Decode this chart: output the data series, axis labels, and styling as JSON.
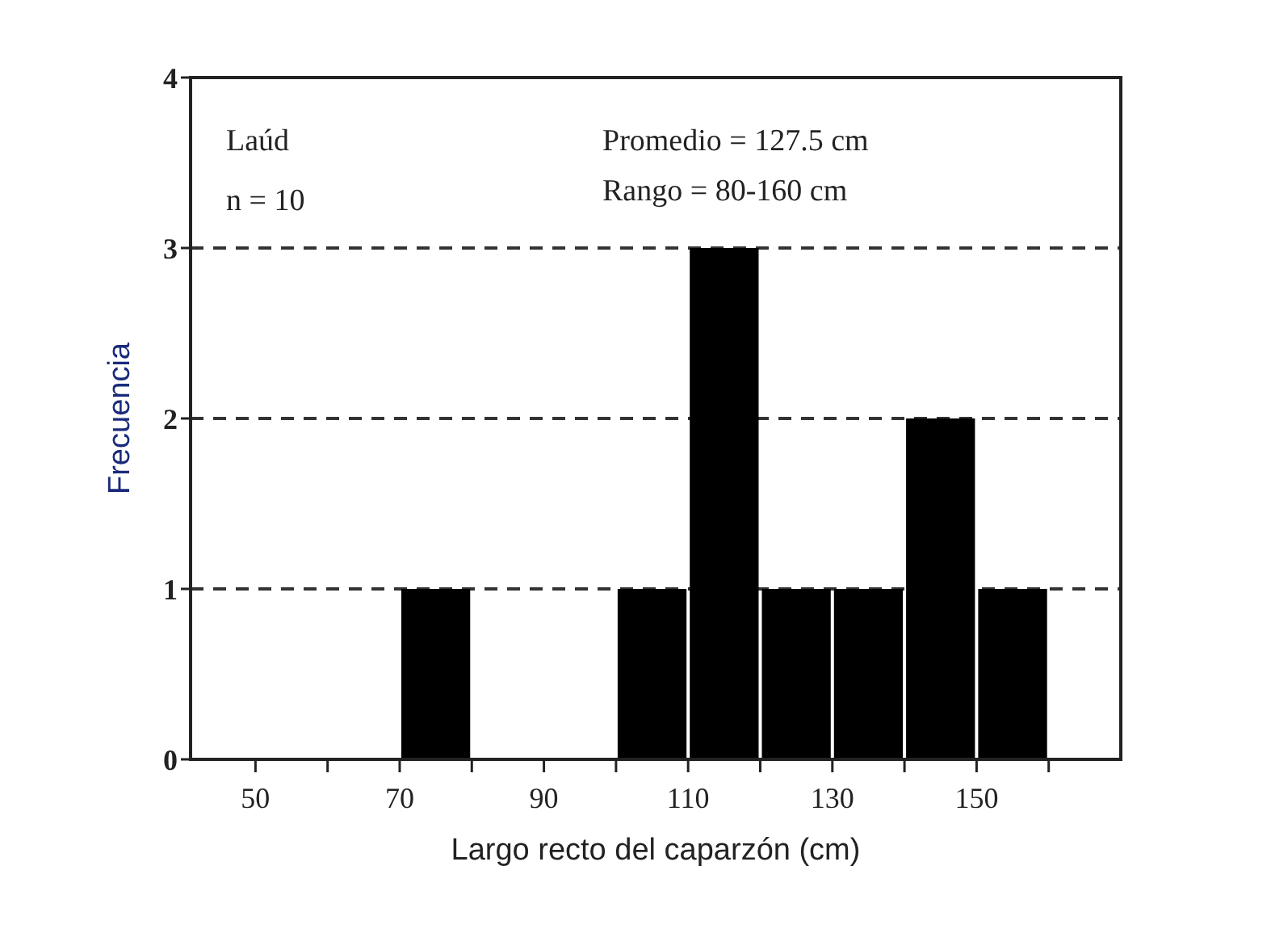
{
  "chart_data": {
    "type": "histogram",
    "xlabel": "Largo recto del caparzón (cm)",
    "ylabel": "Frecuencia",
    "bins": [
      70,
      80,
      90,
      100,
      110,
      120,
      130,
      140,
      150,
      160
    ],
    "values": [
      1,
      0,
      0,
      1,
      3,
      1,
      1,
      2,
      1
    ],
    "color": "#000000",
    "xlim": [
      41,
      170
    ],
    "xticks": [
      50,
      {
        "value": 60,
        "label": null
      },
      70,
      {
        "value": 80,
        "label": null
      },
      90,
      {
        "value": 100,
        "label": null
      },
      110,
      {
        "value": 120,
        "label": null
      },
      130,
      {
        "value": 140,
        "label": null
      },
      150,
      {
        "value": 160,
        "label": null
      }
    ],
    "ylim": [
      0,
      4
    ],
    "yticks": [
      0,
      1,
      2,
      3,
      4
    ],
    "grid": "y",
    "line_style": "dashed",
    "annotations": [
      "Laúd",
      "n = 10",
      "Promedio = 127.5 cm",
      "Rango = 80-160 cm"
    ]
  }
}
